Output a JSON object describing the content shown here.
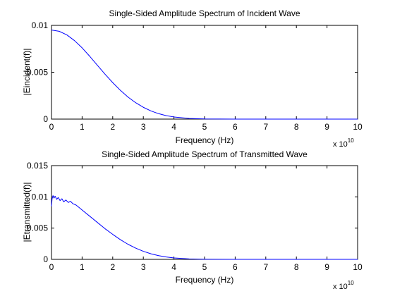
{
  "chart_data": [
    {
      "type": "line",
      "title": "Single-Sided Amplitude Spectrum of Incident Wave",
      "xlabel": "Frequency (Hz)",
      "ylabel": "|Eincident(f)|",
      "x_multiplier_label": {
        "base": "x 10",
        "exponent": "10"
      },
      "xlim": [
        0,
        10
      ],
      "ylim": [
        0,
        0.01
      ],
      "xticks": [
        0,
        1,
        2,
        3,
        4,
        5,
        6,
        7,
        8,
        9,
        10
      ],
      "xtick_labels": [
        "0",
        "1",
        "2",
        "3",
        "4",
        "5",
        "6",
        "7",
        "8",
        "9",
        "10"
      ],
      "yticks": [
        0,
        0.005,
        0.01
      ],
      "ytick_labels": [
        "0",
        "0.005",
        "0.01"
      ],
      "grid": false,
      "line_color": "#0000ff",
      "series": [
        {
          "x": [
            0,
            0.25,
            0.5,
            0.75,
            1,
            1.25,
            1.5,
            1.75,
            2,
            2.25,
            2.5,
            2.75,
            3,
            3.25,
            3.5,
            3.75,
            4,
            4.5,
            5,
            6,
            7,
            8,
            9,
            10
          ],
          "y": [
            0.0095,
            0.00937,
            0.00899,
            0.00838,
            0.0076,
            0.0067,
            0.00574,
            0.00479,
            0.00389,
            0.00307,
            0.00235,
            0.00175,
            0.00126,
            0.00087,
            0.00058,
            0.00037,
            0.00023,
            7e-05,
            2e-05,
            0,
            0,
            0,
            0,
            0
          ]
        }
      ]
    },
    {
      "type": "line",
      "title": "Single-Sided Amplitude Spectrum of Transmitted Wave",
      "xlabel": "Frequency (Hz)",
      "ylabel": "|Etransmitted(f)|",
      "x_multiplier_label": {
        "base": "x 10",
        "exponent": "10"
      },
      "xlim": [
        0,
        10
      ],
      "ylim": [
        0,
        0.015
      ],
      "xticks": [
        0,
        1,
        2,
        3,
        4,
        5,
        6,
        7,
        8,
        9,
        10
      ],
      "xtick_labels": [
        "0",
        "1",
        "2",
        "3",
        "4",
        "5",
        "6",
        "7",
        "8",
        "9",
        "10"
      ],
      "yticks": [
        0,
        0.005,
        0.01,
        0.015
      ],
      "ytick_labels": [
        "0",
        "0.005",
        "0.01",
        "0.015"
      ],
      "grid": false,
      "line_color": "#0000ff",
      "series": [
        {
          "x": [
            0,
            0.02,
            0.05,
            0.08,
            0.12,
            0.17,
            0.22,
            0.28,
            0.34,
            0.4,
            0.47,
            0.55,
            0.62,
            0.7,
            0.8,
            0.9,
            1,
            1.25,
            1.5,
            1.75,
            2,
            2.25,
            2.5,
            2.75,
            3,
            3.25,
            3.5,
            3.75,
            4,
            4.5,
            5,
            6,
            7,
            8,
            9,
            10
          ],
          "y": [
            0.0085,
            0.0097,
            0.0102,
            0.0098,
            0.0101,
            0.0096,
            0.0099,
            0.0094,
            0.0097,
            0.0092,
            0.0095,
            0.0091,
            0.0093,
            0.0089,
            0.0087,
            0.0083,
            0.0079,
            0.0069,
            0.0059,
            0.0049,
            0.004,
            0.00315,
            0.00241,
            0.0018,
            0.00129,
            0.00089,
            0.00059,
            0.00038,
            0.00023,
            7e-05,
            2e-05,
            0,
            0,
            0,
            0,
            0
          ]
        }
      ]
    }
  ]
}
